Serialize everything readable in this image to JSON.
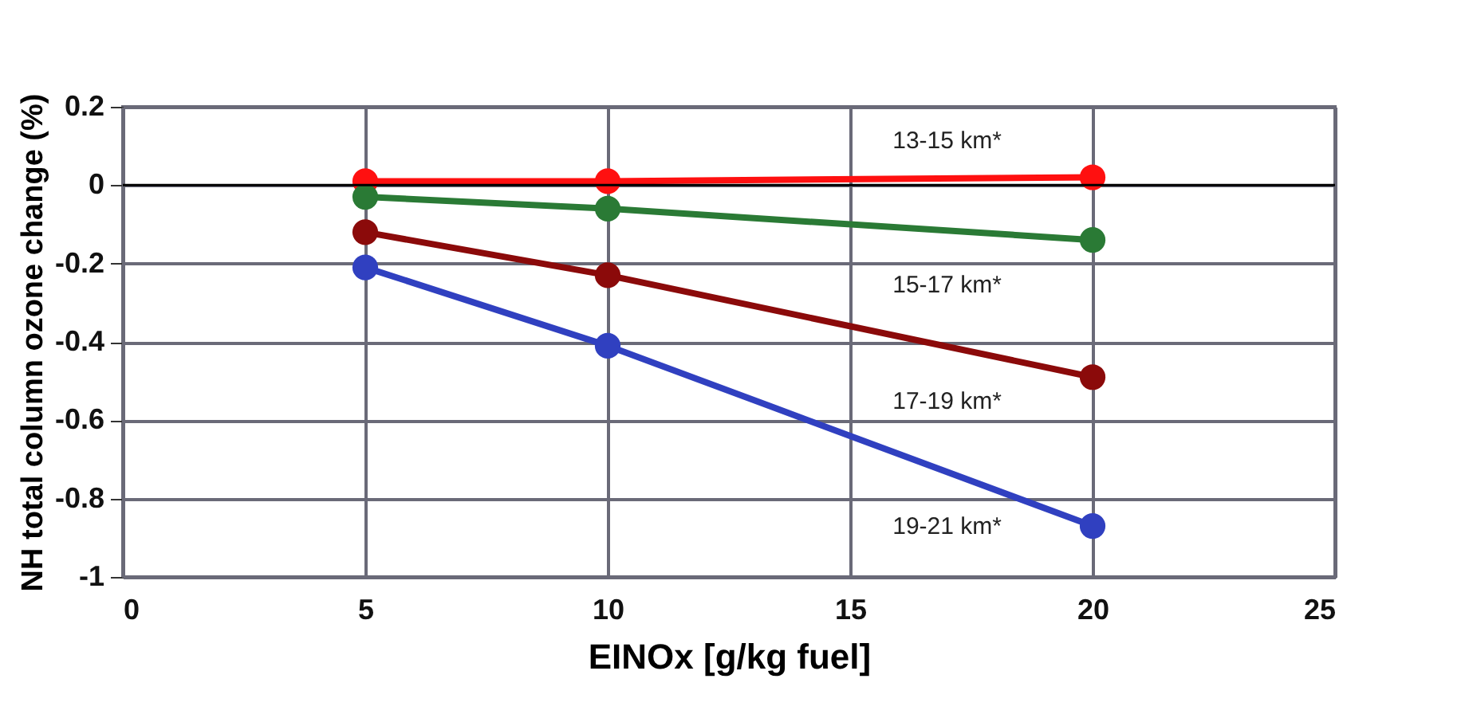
{
  "chart_data": {
    "type": "line",
    "xlabel": "EINOx [g/kg fuel]",
    "ylabel": "NH total column ozone change (%)",
    "x": [
      5,
      10,
      20
    ],
    "series": [
      {
        "name": "13-15 km*",
        "color": "#ff1010",
        "values": [
          0.01,
          0.01,
          0.02
        ]
      },
      {
        "name": "15-17 km*",
        "color": "#2a7a35",
        "values": [
          -0.03,
          -0.06,
          -0.14
        ]
      },
      {
        "name": "17-19 km*",
        "color": "#8b0a0a",
        "values": [
          -0.12,
          -0.23,
          -0.49
        ]
      },
      {
        "name": "19-21 km*",
        "color": "#3040c0",
        "values": [
          -0.21,
          -0.41,
          -0.87
        ]
      }
    ],
    "xlim": [
      0,
      25
    ],
    "xticks": [
      0,
      5,
      10,
      15,
      20,
      25
    ],
    "ylim": [
      -1,
      0.2
    ],
    "yticks": [
      -1,
      -0.8,
      -0.6,
      -0.4,
      -0.2,
      0,
      0.2
    ],
    "ref_lines": [
      {
        "axis": "y",
        "value": 0,
        "color": "#000000"
      }
    ],
    "grid": true,
    "marker": "circle",
    "legend": false
  }
}
